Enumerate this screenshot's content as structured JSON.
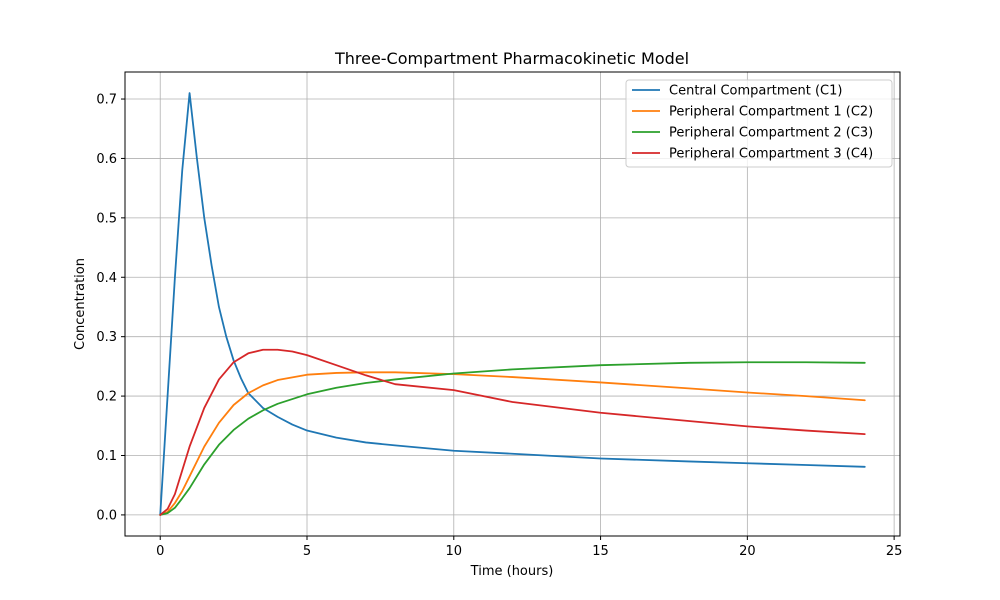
{
  "chart_data": {
    "type": "line",
    "title": "Three-Compartment Pharmacokinetic Model",
    "xlabel": "Time (hours)",
    "ylabel": "Concentration",
    "xlim": [
      -1.2,
      25.2
    ],
    "ylim": [
      -0.0355,
      0.7455
    ],
    "xticks": [
      0,
      5,
      10,
      15,
      20,
      25
    ],
    "yticks": [
      0.0,
      0.1,
      0.2,
      0.3,
      0.4,
      0.5,
      0.6,
      0.7
    ],
    "xtick_labels": [
      "0",
      "5",
      "10",
      "15",
      "20",
      "25"
    ],
    "ytick_labels": [
      "0.0",
      "0.1",
      "0.2",
      "0.3",
      "0.4",
      "0.5",
      "0.6",
      "0.7"
    ],
    "grid": true,
    "legend_position": "top-right",
    "series": [
      {
        "name": "Central Compartment (C1)",
        "color": "#1f77b4",
        "x": [
          0,
          0.25,
          0.5,
          0.75,
          1.0,
          1.25,
          1.5,
          1.75,
          2.0,
          2.25,
          2.5,
          2.75,
          3.0,
          3.5,
          4.0,
          4.5,
          5.0,
          6.0,
          7.0,
          8.0,
          10.0,
          12.0,
          15.0,
          18.0,
          20.0,
          22.0,
          24.0
        ],
        "y": [
          0.0,
          0.2,
          0.4,
          0.58,
          0.71,
          0.6,
          0.5,
          0.42,
          0.35,
          0.3,
          0.26,
          0.23,
          0.205,
          0.18,
          0.165,
          0.152,
          0.142,
          0.13,
          0.122,
          0.117,
          0.108,
          0.103,
          0.095,
          0.09,
          0.087,
          0.084,
          0.081
        ]
      },
      {
        "name": "Peripheral Compartment 1 (C2)",
        "color": "#ff7f0e",
        "x": [
          0,
          0.25,
          0.5,
          0.75,
          1.0,
          1.5,
          2.0,
          2.5,
          3.0,
          3.5,
          4.0,
          5.0,
          6.0,
          7.0,
          8.0,
          10.0,
          12.0,
          15.0,
          18.0,
          20.0,
          22.0,
          24.0
        ],
        "y": [
          0.0,
          0.005,
          0.02,
          0.04,
          0.065,
          0.115,
          0.155,
          0.185,
          0.205,
          0.218,
          0.227,
          0.236,
          0.239,
          0.24,
          0.24,
          0.237,
          0.232,
          0.223,
          0.213,
          0.206,
          0.2,
          0.193
        ]
      },
      {
        "name": "Peripheral Compartment 2 (C3)",
        "color": "#2ca02c",
        "x": [
          0,
          0.25,
          0.5,
          0.75,
          1.0,
          1.5,
          2.0,
          2.5,
          3.0,
          3.5,
          4.0,
          5.0,
          6.0,
          7.0,
          8.0,
          10.0,
          12.0,
          15.0,
          18.0,
          20.0,
          22.0,
          24.0
        ],
        "y": [
          0.0,
          0.003,
          0.012,
          0.028,
          0.045,
          0.085,
          0.118,
          0.143,
          0.162,
          0.176,
          0.187,
          0.203,
          0.214,
          0.222,
          0.228,
          0.238,
          0.245,
          0.252,
          0.256,
          0.257,
          0.257,
          0.256
        ]
      },
      {
        "name": "Peripheral Compartment 3 (C4)",
        "color": "#d62728",
        "x": [
          0,
          0.25,
          0.5,
          0.75,
          1.0,
          1.5,
          2.0,
          2.5,
          3.0,
          3.5,
          4.0,
          4.5,
          5.0,
          6.0,
          7.0,
          8.0,
          10.0,
          12.0,
          15.0,
          18.0,
          20.0,
          22.0,
          24.0
        ],
        "y": [
          0.0,
          0.01,
          0.035,
          0.075,
          0.115,
          0.18,
          0.228,
          0.257,
          0.272,
          0.278,
          0.278,
          0.275,
          0.269,
          0.252,
          0.235,
          0.22,
          0.21,
          0.19,
          0.172,
          0.158,
          0.149,
          0.142,
          0.136
        ]
      }
    ]
  }
}
